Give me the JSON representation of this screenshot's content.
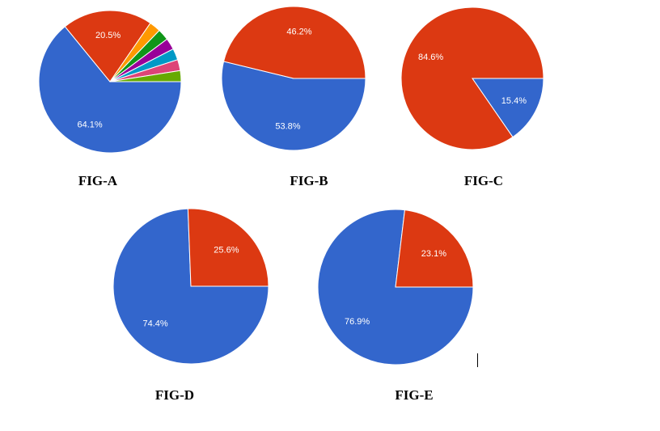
{
  "chart_data": [
    {
      "type": "pie",
      "caption": "FIG-A",
      "slices": [
        {
          "value": 64.1,
          "label": "64.1%",
          "color": "#3366cc"
        },
        {
          "value": 20.5,
          "label": "20.5%",
          "color": "#dc3912"
        },
        {
          "value": 2.6,
          "label": "",
          "color": "#ff9900"
        },
        {
          "value": 2.6,
          "label": "",
          "color": "#109618"
        },
        {
          "value": 2.6,
          "label": "",
          "color": "#990099"
        },
        {
          "value": 2.6,
          "label": "",
          "color": "#0099c6"
        },
        {
          "value": 2.5,
          "label": "",
          "color": "#dd4477"
        },
        {
          "value": 2.5,
          "label": "",
          "color": "#66aa00"
        }
      ]
    },
    {
      "type": "pie",
      "caption": "FIG-B",
      "slices": [
        {
          "value": 53.8,
          "label": "53.8%",
          "color": "#3366cc"
        },
        {
          "value": 46.2,
          "label": "46.2%",
          "color": "#dc3912"
        }
      ]
    },
    {
      "type": "pie",
      "caption": "FIG-C",
      "slices": [
        {
          "value": 15.4,
          "label": "15.4%",
          "color": "#3366cc"
        },
        {
          "value": 84.6,
          "label": "84.6%",
          "color": "#dc3912"
        }
      ]
    },
    {
      "type": "pie",
      "caption": "FIG-D",
      "slices": [
        {
          "value": 74.4,
          "label": "74.4%",
          "color": "#3366cc"
        },
        {
          "value": 25.6,
          "label": "25.6%",
          "color": "#dc3912"
        }
      ]
    },
    {
      "type": "pie",
      "caption": "FIG-E",
      "slices": [
        {
          "value": 76.9,
          "label": "76.9%",
          "color": "#3366cc"
        },
        {
          "value": 23.1,
          "label": "23.1%",
          "color": "#dc3912"
        }
      ]
    }
  ]
}
